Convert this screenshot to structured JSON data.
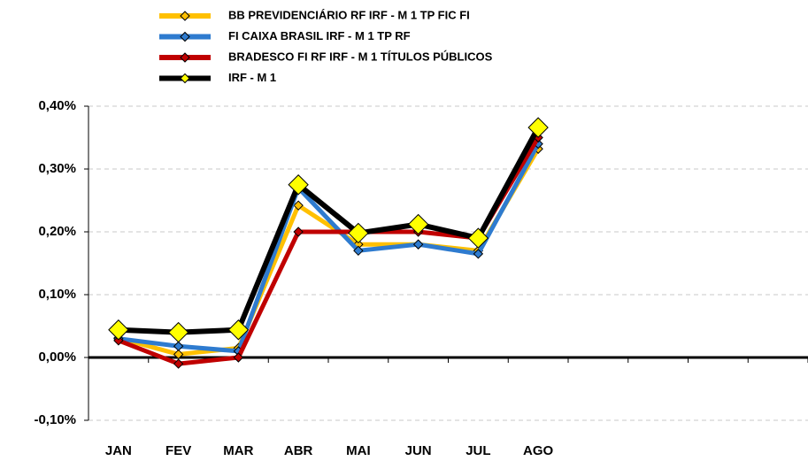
{
  "chart_data": {
    "type": "line",
    "categories": [
      "JAN",
      "FEV",
      "MAR",
      "ABR",
      "MAI",
      "JUN",
      "JUL",
      "AGO",
      null,
      null,
      null,
      null
    ],
    "series": [
      {
        "name": "BB PREVIDENCIÁRIO RF IRF - M 1 TP FIC FI",
        "color": "#ffc000",
        "values": [
          0.031,
          0.005,
          0.015,
          0.242,
          0.18,
          0.18,
          0.17,
          0.332,
          null,
          null,
          null,
          null
        ]
      },
      {
        "name": "FI CAIXA BRASIL IRF - M 1 TP RF",
        "color": "#2e7bcf",
        "values": [
          0.03,
          0.018,
          0.01,
          0.27,
          0.17,
          0.18,
          0.165,
          0.34,
          null,
          null,
          null,
          null
        ]
      },
      {
        "name": "BRADESCO FI RF IRF - M 1 TÍTULOS PÚBLICOS",
        "color": "#c00000",
        "values": [
          0.027,
          -0.01,
          0.0,
          0.2,
          0.2,
          0.2,
          0.19,
          0.35,
          null,
          null,
          null,
          null
        ]
      },
      {
        "name": "IRF - M 1",
        "color": "#000000",
        "values": [
          0.044,
          0.04,
          0.044,
          0.275,
          0.198,
          0.212,
          0.19,
          0.366,
          null,
          null,
          null,
          null
        ]
      }
    ],
    "ylim": [
      -0.1,
      0.4
    ],
    "yticks": [
      {
        "value": -0.1,
        "label": "-0,10%"
      },
      {
        "value": 0,
        "label": "0,00%"
      },
      {
        "value": 0.1,
        "label": "0,10%"
      },
      {
        "value": 0.2,
        "label": "0,20%"
      },
      {
        "value": 0.3,
        "label": "0,30%"
      },
      {
        "value": 0.4,
        "label": "0,40%"
      }
    ],
    "grid": true
  }
}
